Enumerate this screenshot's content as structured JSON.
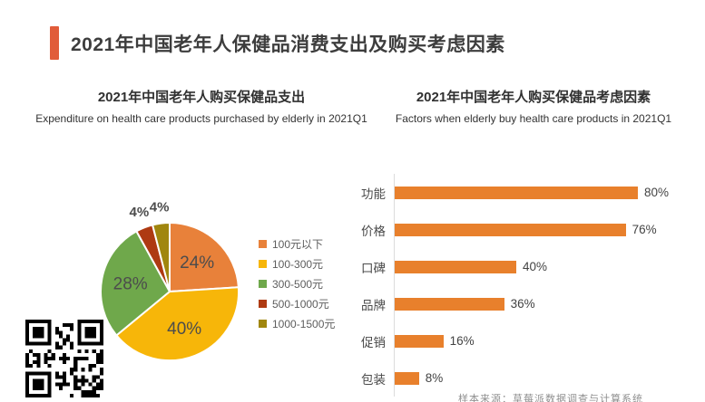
{
  "page": {
    "title": "2021年中国老年人保健品消费支出及购买考虑因素",
    "source_note": "样本来源：草莓派数据调查与计算系统"
  },
  "colors": {
    "accent": "#e15c3a",
    "title_text": "#3d3d3d",
    "bar_orange": "#e8802c",
    "axis_line": "#dcdcdc"
  },
  "chart_data": [
    {
      "type": "pie",
      "title": "2021年中国老年人购买保健品支出",
      "subtitle": "Expenditure on health care products purchased by elderly in 2021Q1",
      "start_angle_deg": 0,
      "direction": "clockwise",
      "legend_position": "right",
      "value_suffix": "%",
      "slices": [
        {
          "label": "100元以下",
          "value": 24,
          "color": "#e8813a"
        },
        {
          "label": "100-300元",
          "value": 40,
          "color": "#f7b609"
        },
        {
          "label": "300-500元",
          "value": 28,
          "color": "#6fa84b"
        },
        {
          "label": "500-1000元",
          "value": 4,
          "color": "#ae3a12"
        },
        {
          "label": "1000-1500元",
          "value": 4,
          "color": "#a0860e"
        }
      ]
    },
    {
      "type": "bar",
      "title": "2021年中国老年人购买保健品考虑因素",
      "subtitle": "Factors when elderly  buy health care products in 2021Q1",
      "orientation": "horizontal",
      "categories": [
        "功能",
        "价格",
        "口碑",
        "品牌",
        "促销",
        "包装"
      ],
      "values": [
        80,
        76,
        40,
        36,
        16,
        8
      ],
      "value_suffix": "%",
      "xlim": [
        0,
        100
      ],
      "bar_color": "#e8802c",
      "grid": false,
      "legend_position": "none"
    }
  ],
  "qr_code": {
    "name": "qr-code",
    "present": true
  }
}
